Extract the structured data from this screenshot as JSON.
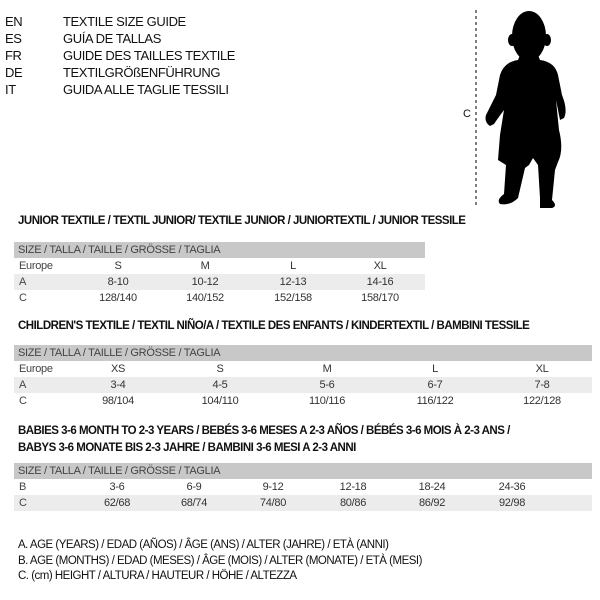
{
  "languages": [
    {
      "code": "EN",
      "name": "TEXTILE SIZE GUIDE"
    },
    {
      "code": "ES",
      "name": "GUÍA DE TALLAS"
    },
    {
      "code": "FR",
      "name": "GUIDE DES TAILLES TEXTILE"
    },
    {
      "code": "DE",
      "name": "TEXTILGRÖßENFÜHRUNG"
    },
    {
      "code": "IT",
      "name": "GUIDA ALLE TAGLIE TESSILI"
    }
  ],
  "figure": {
    "measure_label": "C",
    "icon": "baby-silhouette-icon"
  },
  "junior": {
    "title": "JUNIOR TEXTILE / TEXTIL JUNIOR/ TEXTILE JUNIOR / JUNIORTEXTIL / JUNIOR TESSILE",
    "header": "SIZE / TALLA / TAILLE / GRÖSSE / TAGLIA",
    "rows": [
      {
        "label": "Europe",
        "values": [
          "S",
          "M",
          "L",
          "XL"
        ]
      },
      {
        "label": "A",
        "values": [
          "8-10",
          "10-12",
          "12-13",
          "14-16"
        ]
      },
      {
        "label": "C",
        "values": [
          "128/140",
          "140/152",
          "152/158",
          "158/170"
        ]
      }
    ]
  },
  "children": {
    "title": "CHILDREN'S TEXTILE / TEXTIL NIÑO/A / TEXTILE DES ENFANTS / KINDERTEXTIL / BAMBINI TESSILE",
    "header": "SIZE / TALLA / TAILLE / GRÖSSE / TAGLIA",
    "rows": [
      {
        "label": "Europe",
        "values": [
          "XS",
          "S",
          "M",
          "L",
          "XL"
        ]
      },
      {
        "label": "A",
        "values": [
          "3-4",
          "4-5",
          "5-6",
          "6-7",
          "7-8"
        ]
      },
      {
        "label": "C",
        "values": [
          "98/104",
          "104/110",
          "110/116",
          "116/122",
          "122/128"
        ]
      }
    ]
  },
  "babies": {
    "title_line1": "BABIES 3-6 MONTH TO 2-3 YEARS / BEBÉS 3-6 MESES A 2-3 AÑOS / BÉBÉS 3-6 MOIS À 2-3 ANS /",
    "title_line2": "BABYS 3-6 MONATE BIS 2-3 JAHRE / BAMBINI 3-6 MESI A 2-3 ANNI",
    "header": "SIZE / TALLA / TAILLE / GRÖSSE / TAGLIA",
    "rows": [
      {
        "label": "B",
        "values": [
          "3-6",
          "6-9",
          "9-12",
          "12-18",
          "18-24",
          "24-36"
        ]
      },
      {
        "label": "C",
        "values": [
          "62/68",
          "68/74",
          "74/80",
          "80/86",
          "86/92",
          "92/98"
        ]
      }
    ]
  },
  "legend": [
    "A. AGE (YEARS) / EDAD (AÑOS) / ÂGE (ANS) / ALTER (JAHRE) / ETÀ (ANNI)",
    "B. AGE (MONTHS) / EDAD (MESES) / ÂGE (MOIS) / ALTER (MONATE) / ETÀ (MESI)",
    "C. (cm) HEIGHT / ALTURA / HAUTEUR / HÖHE / ALTEZZA"
  ]
}
